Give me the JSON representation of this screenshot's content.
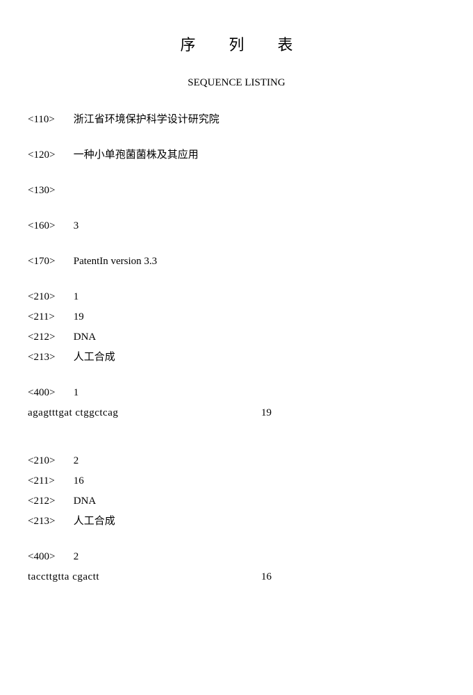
{
  "title_cn": "序列表",
  "title_en": "SEQUENCE LISTING",
  "header": {
    "applicant_tag": "<110>",
    "applicant": "浙江省环境保护科学设计研究院",
    "title_tag": "<120>",
    "title": "一种小单孢菌菌株及其应用",
    "ref_tag": "<130>",
    "ref": "",
    "count_tag": "<160>",
    "count": "3",
    "software_tag": "<170>",
    "software": "PatentIn version 3.3"
  },
  "sequences": [
    {
      "id_tag": "<210>",
      "id": "1",
      "len_tag": "<211>",
      "len": "19",
      "type_tag": "<212>",
      "type": "DNA",
      "org_tag": "<213>",
      "org": "人工合成",
      "seq_tag": "<400>",
      "seq_id": "1",
      "sequence": "agagtttgat ctggctcag",
      "seq_len": "19"
    },
    {
      "id_tag": "<210>",
      "id": "2",
      "len_tag": "<211>",
      "len": "16",
      "type_tag": "<212>",
      "type": "DNA",
      "org_tag": "<213>",
      "org": "人工合成",
      "seq_tag": "<400>",
      "seq_id": "2",
      "sequence": "taccttgtta cgactt",
      "seq_len": "16"
    }
  ]
}
